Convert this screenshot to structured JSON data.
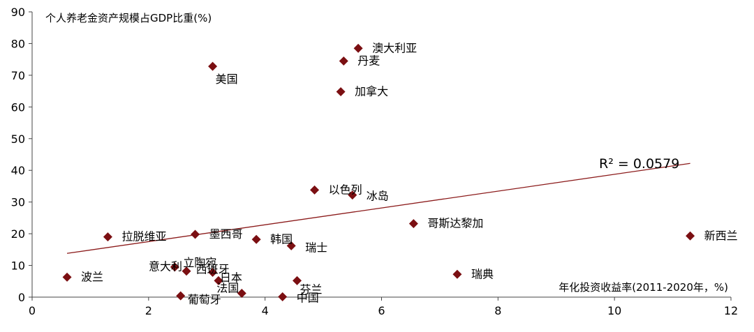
{
  "chart_data": {
    "type": "scatter",
    "title": "",
    "ylabel": "个人养老金资产规模占GDP比重(%)",
    "xlabel": "年化投资收益率(2011-2020年，%)",
    "xlim": [
      0,
      12
    ],
    "ylim": [
      0,
      90
    ],
    "x_ticks": [
      "0",
      "2",
      "4",
      "6",
      "8",
      "10",
      "12"
    ],
    "y_ticks": [
      "0",
      "10",
      "20",
      "30",
      "40",
      "50",
      "60",
      "70",
      "80",
      "90"
    ],
    "grid": false,
    "legend": "none",
    "marker_color": "#7b0f12",
    "trendline_color": "#8b1a1a",
    "points": [
      {
        "label": "澳大利亚",
        "x": 5.6,
        "y": 78.5
      },
      {
        "label": "丹麦",
        "x": 5.35,
        "y": 74.5
      },
      {
        "label": "美国",
        "x": 3.1,
        "y": 72.8
      },
      {
        "label": "加拿大",
        "x": 5.3,
        "y": 64.8
      },
      {
        "label": "以色列",
        "x": 4.85,
        "y": 33.8
      },
      {
        "label": "冰岛",
        "x": 5.5,
        "y": 32.2
      },
      {
        "label": "哥斯达黎加",
        "x": 6.55,
        "y": 23.2
      },
      {
        "label": "新西兰",
        "x": 11.3,
        "y": 19.3
      },
      {
        "label": "拉脱维亚",
        "x": 1.3,
        "y": 19.0
      },
      {
        "label": "墨西哥",
        "x": 2.8,
        "y": 19.8
      },
      {
        "label": "韩国",
        "x": 3.85,
        "y": 18.2
      },
      {
        "label": "瑞士",
        "x": 4.45,
        "y": 16.2
      },
      {
        "label": "立陶宛",
        "x": 2.45,
        "y": 9.5
      },
      {
        "label": "意大利",
        "x": 2.65,
        "y": 8.2
      },
      {
        "label": "西班牙",
        "x": 3.1,
        "y": 7.8
      },
      {
        "label": "日本",
        "x": 3.2,
        "y": 5.2
      },
      {
        "label": "波兰",
        "x": 0.6,
        "y": 6.3
      },
      {
        "label": "瑞典",
        "x": 7.3,
        "y": 7.2
      },
      {
        "label": "芬兰",
        "x": 4.55,
        "y": 5.2
      },
      {
        "label": "法国",
        "x": 3.6,
        "y": 1.2
      },
      {
        "label": "葡萄牙",
        "x": 2.55,
        "y": 0.4
      },
      {
        "label": "中国",
        "x": 4.3,
        "y": 0.1
      }
    ],
    "trendline": {
      "x_start": 0.6,
      "y_start": 13.8,
      "x_end": 11.3,
      "y_end": 42.2,
      "r_squared_label": "R² = 0.0579"
    }
  }
}
